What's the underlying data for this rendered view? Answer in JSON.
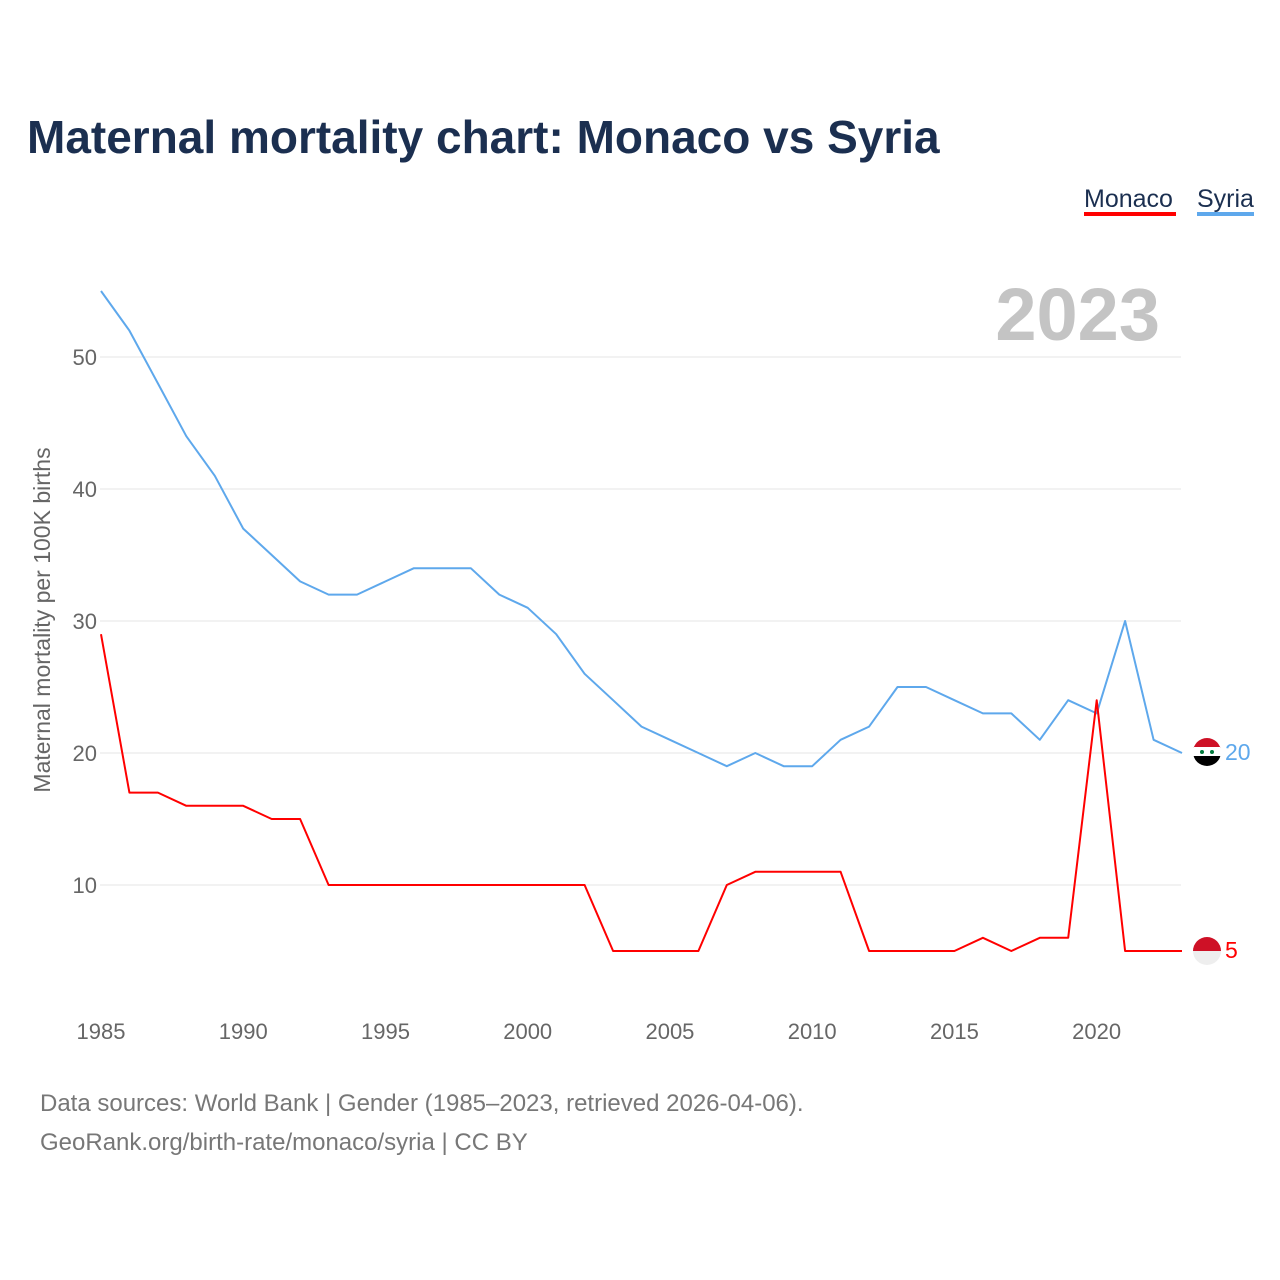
{
  "chart_data": {
    "type": "line",
    "title": "Maternal mortality chart: Monaco vs Syria",
    "xlabel": "",
    "ylabel": "Maternal mortality per 100K births",
    "xlim": [
      1985,
      2023
    ],
    "ylim": [
      0,
      55
    ],
    "x_ticks": [
      1985,
      1990,
      1995,
      2000,
      2005,
      2010,
      2015,
      2020
    ],
    "y_ticks": [
      10,
      20,
      30,
      40,
      50
    ],
    "grid": true,
    "legend_position": "top-right",
    "current_year_label": "2023",
    "x": [
      1985,
      1986,
      1987,
      1988,
      1989,
      1990,
      1991,
      1992,
      1993,
      1994,
      1995,
      1996,
      1997,
      1998,
      1999,
      2000,
      2001,
      2002,
      2003,
      2004,
      2005,
      2006,
      2007,
      2008,
      2009,
      2010,
      2011,
      2012,
      2013,
      2014,
      2015,
      2016,
      2017,
      2018,
      2019,
      2020,
      2021,
      2022,
      2023
    ],
    "series": [
      {
        "name": "Monaco",
        "color": "#ff0000",
        "end_label": "5",
        "values": [
          29,
          17,
          17,
          16,
          16,
          16,
          15,
          15,
          10,
          10,
          10,
          10,
          10,
          10,
          10,
          10,
          10,
          10,
          5,
          5,
          5,
          5,
          10,
          11,
          11,
          11,
          11,
          5,
          5,
          5,
          5,
          6,
          5,
          6,
          6,
          24,
          5,
          5,
          5
        ]
      },
      {
        "name": "Syria",
        "color": "#5ea8ec",
        "end_label": "20",
        "values": [
          55,
          52,
          48,
          44,
          41,
          37,
          35,
          33,
          32,
          32,
          33,
          34,
          34,
          34,
          32,
          31,
          29,
          26,
          24,
          22,
          21,
          20,
          19,
          20,
          19,
          19,
          21,
          22,
          25,
          25,
          24,
          23,
          23,
          21,
          24,
          23,
          30,
          21,
          20
        ]
      }
    ]
  },
  "footer": {
    "line1": "Data sources: World Bank | Gender (1985–2023, retrieved 2026-04-06).",
    "line2": "GeoRank.org/birth-rate/monaco/syria | CC BY"
  }
}
